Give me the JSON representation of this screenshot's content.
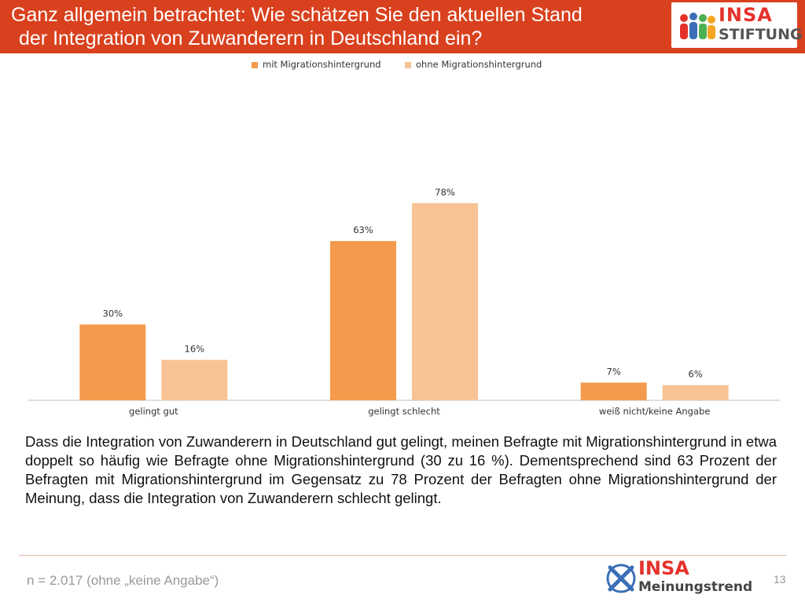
{
  "header": {
    "title_line1": "Ganz allgemein betrachtet: Wie schätzen Sie den aktuellen Stand",
    "title_line2": "der Integration von Zuwanderern in Deutschland ein?",
    "background": "#d9411e"
  },
  "logo_top": {
    "brand": "INSA",
    "sub": "STIFTUNG"
  },
  "chart_data": {
    "type": "bar",
    "categories": [
      "gelingt gut",
      "gelingt schlecht",
      "weiß nicht/keine Angabe"
    ],
    "series": [
      {
        "name": "mit Migrationshintergrund",
        "values": [
          30,
          63,
          7
        ],
        "color": "#f39a4d"
      },
      {
        "name": "ohne Migrationshintergrund",
        "values": [
          16,
          78,
          6
        ],
        "color": "#f8c394"
      }
    ],
    "value_suffix": "%",
    "legend_position": "top",
    "grid": false,
    "ylim": [
      0,
      90
    ]
  },
  "description": "Dass die Integration von Zuwanderern in Deutschland gut gelingt, meinen Befragte mit Migrationshintergrund in etwa doppelt so häufig wie Befragte ohne Migrationshintergrund (30 zu 16 %). Dementsprechend sind 63 Prozent der Befragten mit Migrationshintergrund im Gegensatz zu 78 Prozent der Befragten ohne Migrationshintergrund der Meinung, dass die Integration von Zuwanderern schlecht gelingt.",
  "footer": {
    "sample_note": "n = 2.017 (ohne „keine Angabe“)",
    "logo_brand": "INSA",
    "logo_sub": "Meinungstrend",
    "page_number": "13"
  }
}
